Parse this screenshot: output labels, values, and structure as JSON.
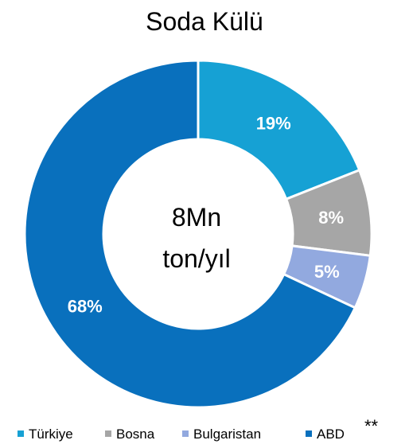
{
  "chart_data": {
    "type": "pie",
    "title": "Soda Külü",
    "center_label": [
      "8Mn",
      "ton/yıl"
    ],
    "categories": [
      "Türkiye",
      "Bosna",
      "Bulgaristan",
      "ABD"
    ],
    "values": [
      19,
      8,
      5,
      68
    ],
    "value_labels": [
      "19%",
      "8%",
      "5%",
      "68%"
    ],
    "colors": [
      "#16a1d4",
      "#a6a6a6",
      "#92a9df",
      "#0970bd"
    ],
    "legend_position": "bottom",
    "legend_note": "**"
  }
}
